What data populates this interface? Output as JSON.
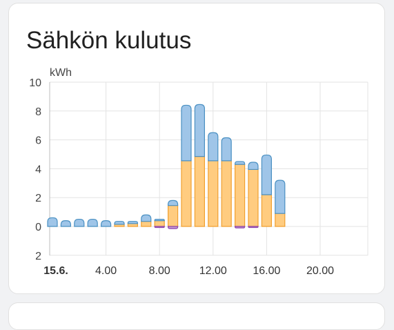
{
  "card": {
    "title": "Sähkön kulutus"
  },
  "chart_data": {
    "type": "bar",
    "ylabel": "kWh",
    "ylim": [
      -2,
      10
    ],
    "y_ticks": [
      {
        "value": 10,
        "label": "10"
      },
      {
        "value": 8,
        "label": "8"
      },
      {
        "value": 6,
        "label": "6"
      },
      {
        "value": 4,
        "label": "4"
      },
      {
        "value": 2,
        "label": "2"
      },
      {
        "value": 0,
        "label": "0"
      },
      {
        "value": -2,
        "label": "2"
      }
    ],
    "x_ticks": [
      {
        "hour": 0,
        "label": "15.6.",
        "bold": true
      },
      {
        "hour": 4,
        "label": "4.00",
        "bold": false
      },
      {
        "hour": 8,
        "label": "8.00",
        "bold": false
      },
      {
        "hour": 12,
        "label": "12.00",
        "bold": false
      },
      {
        "hour": 16,
        "label": "16.00",
        "bold": false
      },
      {
        "hour": 20,
        "label": "20.00",
        "bold": false
      }
    ],
    "hours": [
      0,
      1,
      2,
      3,
      4,
      5,
      6,
      7,
      8,
      9,
      10,
      11,
      12,
      13,
      14,
      15,
      16,
      17
    ],
    "series": [
      {
        "color": "#ffcc80",
        "stroke": "#f0a030",
        "values": [
          0,
          0,
          0,
          0,
          0,
          0.15,
          0.2,
          0.35,
          0.4,
          1.45,
          4.55,
          4.85,
          4.55,
          4.55,
          4.3,
          3.95,
          2.2,
          0.9
        ]
      },
      {
        "color": "#9fc5e8",
        "stroke": "#4a90c2",
        "values": [
          0.6,
          0.4,
          0.5,
          0.5,
          0.4,
          0.2,
          0.15,
          0.45,
          0.1,
          0.35,
          3.85,
          3.6,
          1.95,
          1.6,
          0.2,
          0.5,
          2.75,
          2.3
        ]
      },
      {
        "color": "#c39bd3",
        "stroke": "#8e44ad",
        "values": [
          0,
          0,
          0,
          0,
          0,
          0,
          0,
          0,
          -0.05,
          -0.15,
          0,
          0,
          0,
          0,
          -0.1,
          -0.05,
          0,
          0
        ]
      }
    ]
  }
}
